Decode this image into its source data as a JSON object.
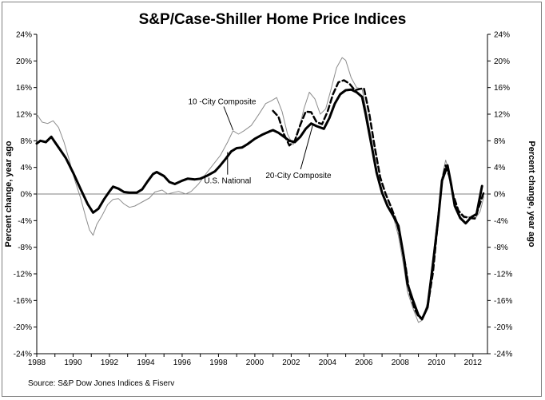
{
  "chart_data": {
    "type": "line",
    "title": "S&P/Case-Shiller Home Price Indices",
    "ylabel_left": "Percent change, year ago",
    "ylabel_right": "Percent change, year ago",
    "source": "Source: S&P Dow Jones Indices & Fiserv",
    "xlim": [
      1988,
      2012.8
    ],
    "ylim": [
      -24,
      24
    ],
    "x_ticks": [
      1988,
      1990,
      1992,
      1994,
      1996,
      1998,
      2000,
      2002,
      2004,
      2006,
      2008,
      2010,
      2012
    ],
    "x_tick_labels": [
      "1988",
      "1990",
      "1992",
      "1994",
      "1996",
      "1998",
      "2000",
      "2002",
      "2004",
      "2006",
      "2008",
      "2010",
      "2012"
    ],
    "y_ticks": [
      24,
      20,
      16,
      12,
      8,
      4,
      0,
      -4,
      -8,
      -12,
      -16,
      -20,
      -24
    ],
    "y_tick_labels": [
      "24%",
      "20%",
      "16%",
      "12%",
      "8%",
      "4%",
      "0%",
      "-4%",
      "-8%",
      "-12%",
      "-16%",
      "-20%",
      "-24%"
    ],
    "grid": false,
    "zero_line": true,
    "annotations": [
      {
        "text": "10 -City Composite",
        "x": 1998.2,
        "y": 13.5,
        "arrow_to": [
          1998.8,
          9.6
        ]
      },
      {
        "text": "U.S. National",
        "x": 1998.5,
        "y": 1.6,
        "arrow_to": [
          1998.5,
          6.3
        ]
      },
      {
        "text": "20-City Composite",
        "x": 2002.4,
        "y": 2.4,
        "arrow_to": [
          2003.2,
          10.5
        ]
      }
    ],
    "series": [
      {
        "name": "U.S. National",
        "color": "#000000",
        "style": "solid-thick",
        "points": [
          [
            1988.0,
            7.6
          ],
          [
            1988.2,
            8.0
          ],
          [
            1988.5,
            7.8
          ],
          [
            1988.8,
            8.6
          ],
          [
            1989.0,
            7.8
          ],
          [
            1989.3,
            6.6
          ],
          [
            1989.6,
            5.4
          ],
          [
            1990.0,
            3.2
          ],
          [
            1990.4,
            0.8
          ],
          [
            1990.8,
            -1.5
          ],
          [
            1991.1,
            -2.8
          ],
          [
            1991.4,
            -2.2
          ],
          [
            1991.7,
            -0.8
          ],
          [
            1992.0,
            0.4
          ],
          [
            1992.2,
            1.1
          ],
          [
            1992.5,
            0.8
          ],
          [
            1992.8,
            0.3
          ],
          [
            1993.1,
            0.2
          ],
          [
            1993.5,
            0.2
          ],
          [
            1993.8,
            0.7
          ],
          [
            1994.1,
            1.9
          ],
          [
            1994.4,
            3.0
          ],
          [
            1994.6,
            3.3
          ],
          [
            1995.0,
            2.7
          ],
          [
            1995.3,
            1.8
          ],
          [
            1995.6,
            1.5
          ],
          [
            1996.0,
            2.0
          ],
          [
            1996.3,
            2.3
          ],
          [
            1996.7,
            2.2
          ],
          [
            1997.0,
            2.3
          ],
          [
            1997.4,
            2.8
          ],
          [
            1997.8,
            3.4
          ],
          [
            1998.1,
            4.3
          ],
          [
            1998.4,
            5.3
          ],
          [
            1998.7,
            6.4
          ],
          [
            1999.0,
            6.9
          ],
          [
            1999.3,
            7.0
          ],
          [
            1999.6,
            7.5
          ],
          [
            2000.0,
            8.3
          ],
          [
            2000.4,
            8.9
          ],
          [
            2000.8,
            9.4
          ],
          [
            2001.0,
            9.6
          ],
          [
            2001.3,
            9.2
          ],
          [
            2001.6,
            8.6
          ],
          [
            2001.9,
            8.0
          ],
          [
            2002.2,
            7.8
          ],
          [
            2002.5,
            8.6
          ],
          [
            2002.8,
            9.8
          ],
          [
            2003.1,
            10.6
          ],
          [
            2003.4,
            10.2
          ],
          [
            2003.8,
            9.8
          ],
          [
            2004.1,
            11.4
          ],
          [
            2004.4,
            13.6
          ],
          [
            2004.7,
            15.0
          ],
          [
            2005.0,
            15.6
          ],
          [
            2005.3,
            15.7
          ],
          [
            2005.6,
            15.3
          ],
          [
            2005.9,
            14.6
          ],
          [
            2006.1,
            12.0
          ],
          [
            2006.4,
            7.6
          ],
          [
            2006.7,
            3.2
          ],
          [
            2007.0,
            0.2
          ],
          [
            2007.3,
            -1.8
          ],
          [
            2007.6,
            -3.2
          ],
          [
            2007.9,
            -4.8
          ],
          [
            2008.2,
            -9.5
          ],
          [
            2008.4,
            -13.5
          ],
          [
            2008.7,
            -16.0
          ],
          [
            2009.0,
            -18.2
          ],
          [
            2009.2,
            -18.8
          ],
          [
            2009.5,
            -17.0
          ],
          [
            2009.8,
            -10.5
          ],
          [
            2010.1,
            -3.5
          ],
          [
            2010.3,
            2.0
          ],
          [
            2010.6,
            4.3
          ],
          [
            2010.8,
            1.5
          ],
          [
            2011.0,
            -1.8
          ],
          [
            2011.3,
            -3.6
          ],
          [
            2011.6,
            -4.4
          ],
          [
            2011.9,
            -3.5
          ],
          [
            2012.2,
            -3.0
          ],
          [
            2012.5,
            1.2
          ]
        ]
      },
      {
        "name": "10 -City Composite",
        "color": "#8c8c8c",
        "style": "solid-thin",
        "points": [
          [
            1988.0,
            12.0
          ],
          [
            1988.3,
            10.8
          ],
          [
            1988.6,
            10.6
          ],
          [
            1988.9,
            11.0
          ],
          [
            1989.2,
            10.0
          ],
          [
            1989.5,
            7.8
          ],
          [
            1989.8,
            5.0
          ],
          [
            1990.1,
            2.0
          ],
          [
            1990.4,
            -0.5
          ],
          [
            1990.7,
            -3.5
          ],
          [
            1990.9,
            -5.4
          ],
          [
            1991.1,
            -6.2
          ],
          [
            1991.3,
            -4.6
          ],
          [
            1991.6,
            -3.2
          ],
          [
            1991.9,
            -1.6
          ],
          [
            1992.2,
            -0.8
          ],
          [
            1992.5,
            -0.7
          ],
          [
            1992.8,
            -1.5
          ],
          [
            1993.1,
            -2.0
          ],
          [
            1993.4,
            -1.8
          ],
          [
            1993.8,
            -1.2
          ],
          [
            1994.2,
            -0.6
          ],
          [
            1994.5,
            0.3
          ],
          [
            1994.9,
            0.6
          ],
          [
            1995.2,
            0.0
          ],
          [
            1995.5,
            0.2
          ],
          [
            1995.8,
            0.4
          ],
          [
            1996.2,
            0.0
          ],
          [
            1996.5,
            0.4
          ],
          [
            1996.9,
            1.5
          ],
          [
            1997.3,
            3.0
          ],
          [
            1997.7,
            4.4
          ],
          [
            1998.1,
            5.8
          ],
          [
            1998.5,
            7.8
          ],
          [
            1998.8,
            9.5
          ],
          [
            1999.1,
            9.0
          ],
          [
            1999.4,
            9.5
          ],
          [
            1999.8,
            10.3
          ],
          [
            2000.2,
            11.9
          ],
          [
            2000.6,
            13.6
          ],
          [
            2000.9,
            14.0
          ],
          [
            2001.2,
            14.5
          ],
          [
            2001.5,
            12.4
          ],
          [
            2001.8,
            9.0
          ],
          [
            2002.1,
            7.4
          ],
          [
            2002.4,
            9.4
          ],
          [
            2002.7,
            12.8
          ],
          [
            2003.0,
            15.3
          ],
          [
            2003.3,
            14.3
          ],
          [
            2003.6,
            12.0
          ],
          [
            2003.9,
            12.8
          ],
          [
            2004.2,
            15.8
          ],
          [
            2004.5,
            19.0
          ],
          [
            2004.8,
            20.5
          ],
          [
            2005.0,
            20.1
          ],
          [
            2005.3,
            17.5
          ],
          [
            2005.6,
            16.0
          ],
          [
            2005.9,
            15.8
          ],
          [
            2006.1,
            13.0
          ],
          [
            2006.4,
            8.5
          ],
          [
            2006.7,
            3.7
          ],
          [
            2007.0,
            0.0
          ],
          [
            2007.3,
            -2.0
          ],
          [
            2007.6,
            -3.2
          ],
          [
            2007.9,
            -6.3
          ],
          [
            2008.2,
            -11.0
          ],
          [
            2008.4,
            -14.7
          ],
          [
            2008.7,
            -17.2
          ],
          [
            2009.0,
            -19.3
          ],
          [
            2009.2,
            -19.0
          ],
          [
            2009.5,
            -16.3
          ],
          [
            2009.8,
            -9.5
          ],
          [
            2010.1,
            -2.5
          ],
          [
            2010.3,
            2.5
          ],
          [
            2010.5,
            5.1
          ],
          [
            2010.7,
            3.3
          ],
          [
            2010.9,
            0.0
          ],
          [
            2011.2,
            -2.8
          ],
          [
            2011.5,
            -3.6
          ],
          [
            2011.8,
            -3.4
          ],
          [
            2012.1,
            -3.8
          ],
          [
            2012.4,
            -2.6
          ],
          [
            2012.6,
            -0.4
          ]
        ]
      },
      {
        "name": "20-City Composite",
        "color": "#000000",
        "style": "dashed",
        "points": [
          [
            2001.0,
            12.5
          ],
          [
            2001.3,
            11.6
          ],
          [
            2001.6,
            9.0
          ],
          [
            2001.9,
            7.3
          ],
          [
            2002.2,
            8.0
          ],
          [
            2002.5,
            10.4
          ],
          [
            2002.8,
            12.4
          ],
          [
            2003.1,
            12.3
          ],
          [
            2003.4,
            10.8
          ],
          [
            2003.7,
            10.5
          ],
          [
            2004.0,
            12.4
          ],
          [
            2004.3,
            15.0
          ],
          [
            2004.6,
            16.8
          ],
          [
            2004.9,
            17.1
          ],
          [
            2005.2,
            16.6
          ],
          [
            2005.5,
            15.6
          ],
          [
            2005.8,
            15.8
          ],
          [
            2006.0,
            15.9
          ],
          [
            2006.3,
            12.0
          ],
          [
            2006.6,
            7.0
          ],
          [
            2006.9,
            2.5
          ],
          [
            2007.2,
            0.0
          ],
          [
            2007.5,
            -2.0
          ],
          [
            2007.8,
            -4.2
          ],
          [
            2008.0,
            -6.4
          ],
          [
            2008.3,
            -11.0
          ],
          [
            2008.5,
            -14.7
          ],
          [
            2008.8,
            -17.3
          ],
          [
            2009.0,
            -18.4
          ],
          [
            2009.2,
            -18.8
          ],
          [
            2009.5,
            -17.0
          ],
          [
            2009.8,
            -11.8
          ],
          [
            2010.1,
            -3.4
          ],
          [
            2010.3,
            2.0
          ],
          [
            2010.5,
            4.3
          ],
          [
            2010.7,
            2.7
          ],
          [
            2010.9,
            0.0
          ],
          [
            2011.2,
            -2.5
          ],
          [
            2011.5,
            -3.4
          ],
          [
            2011.8,
            -3.6
          ],
          [
            2012.1,
            -3.7
          ],
          [
            2012.3,
            -2.2
          ],
          [
            2012.6,
            0.3
          ]
        ]
      }
    ]
  }
}
